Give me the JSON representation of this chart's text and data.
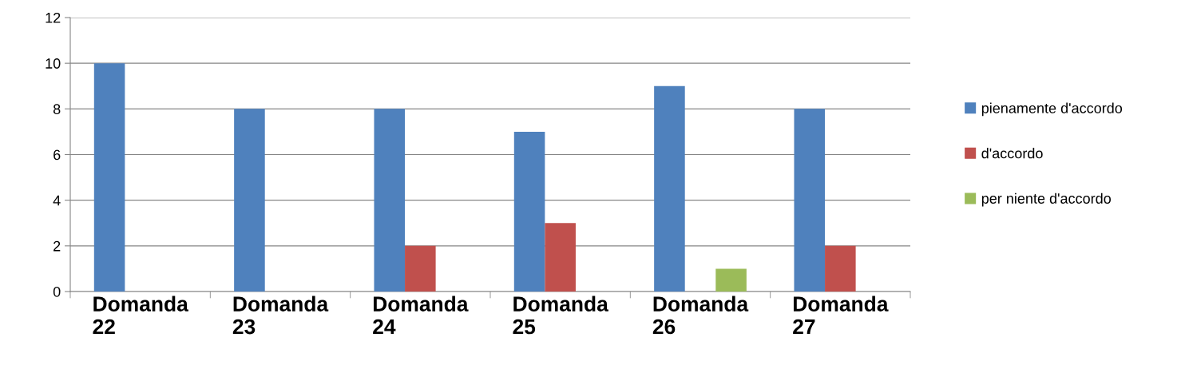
{
  "chart_data": {
    "type": "bar",
    "categories": [
      "Domanda\n22",
      "Domanda\n23",
      "Domanda\n24",
      "Domanda\n25",
      "Domanda\n26",
      "Domanda\n27"
    ],
    "series": [
      {
        "name": "pienamente d'accordo",
        "color": "#4f81bd",
        "values": [
          10,
          8,
          8,
          7,
          9,
          8
        ]
      },
      {
        "name": "d'accordo",
        "color": "#c0504d",
        "values": [
          0,
          0,
          2,
          3,
          0,
          2
        ]
      },
      {
        "name": "per niente d'accordo",
        "color": "#9bbb59",
        "values": [
          0,
          0,
          0,
          0,
          1,
          0
        ]
      }
    ],
    "ylim": [
      0,
      12
    ],
    "yticks": [
      0,
      2,
      4,
      6,
      8,
      10,
      12
    ],
    "grid": "y",
    "legend": "right"
  }
}
